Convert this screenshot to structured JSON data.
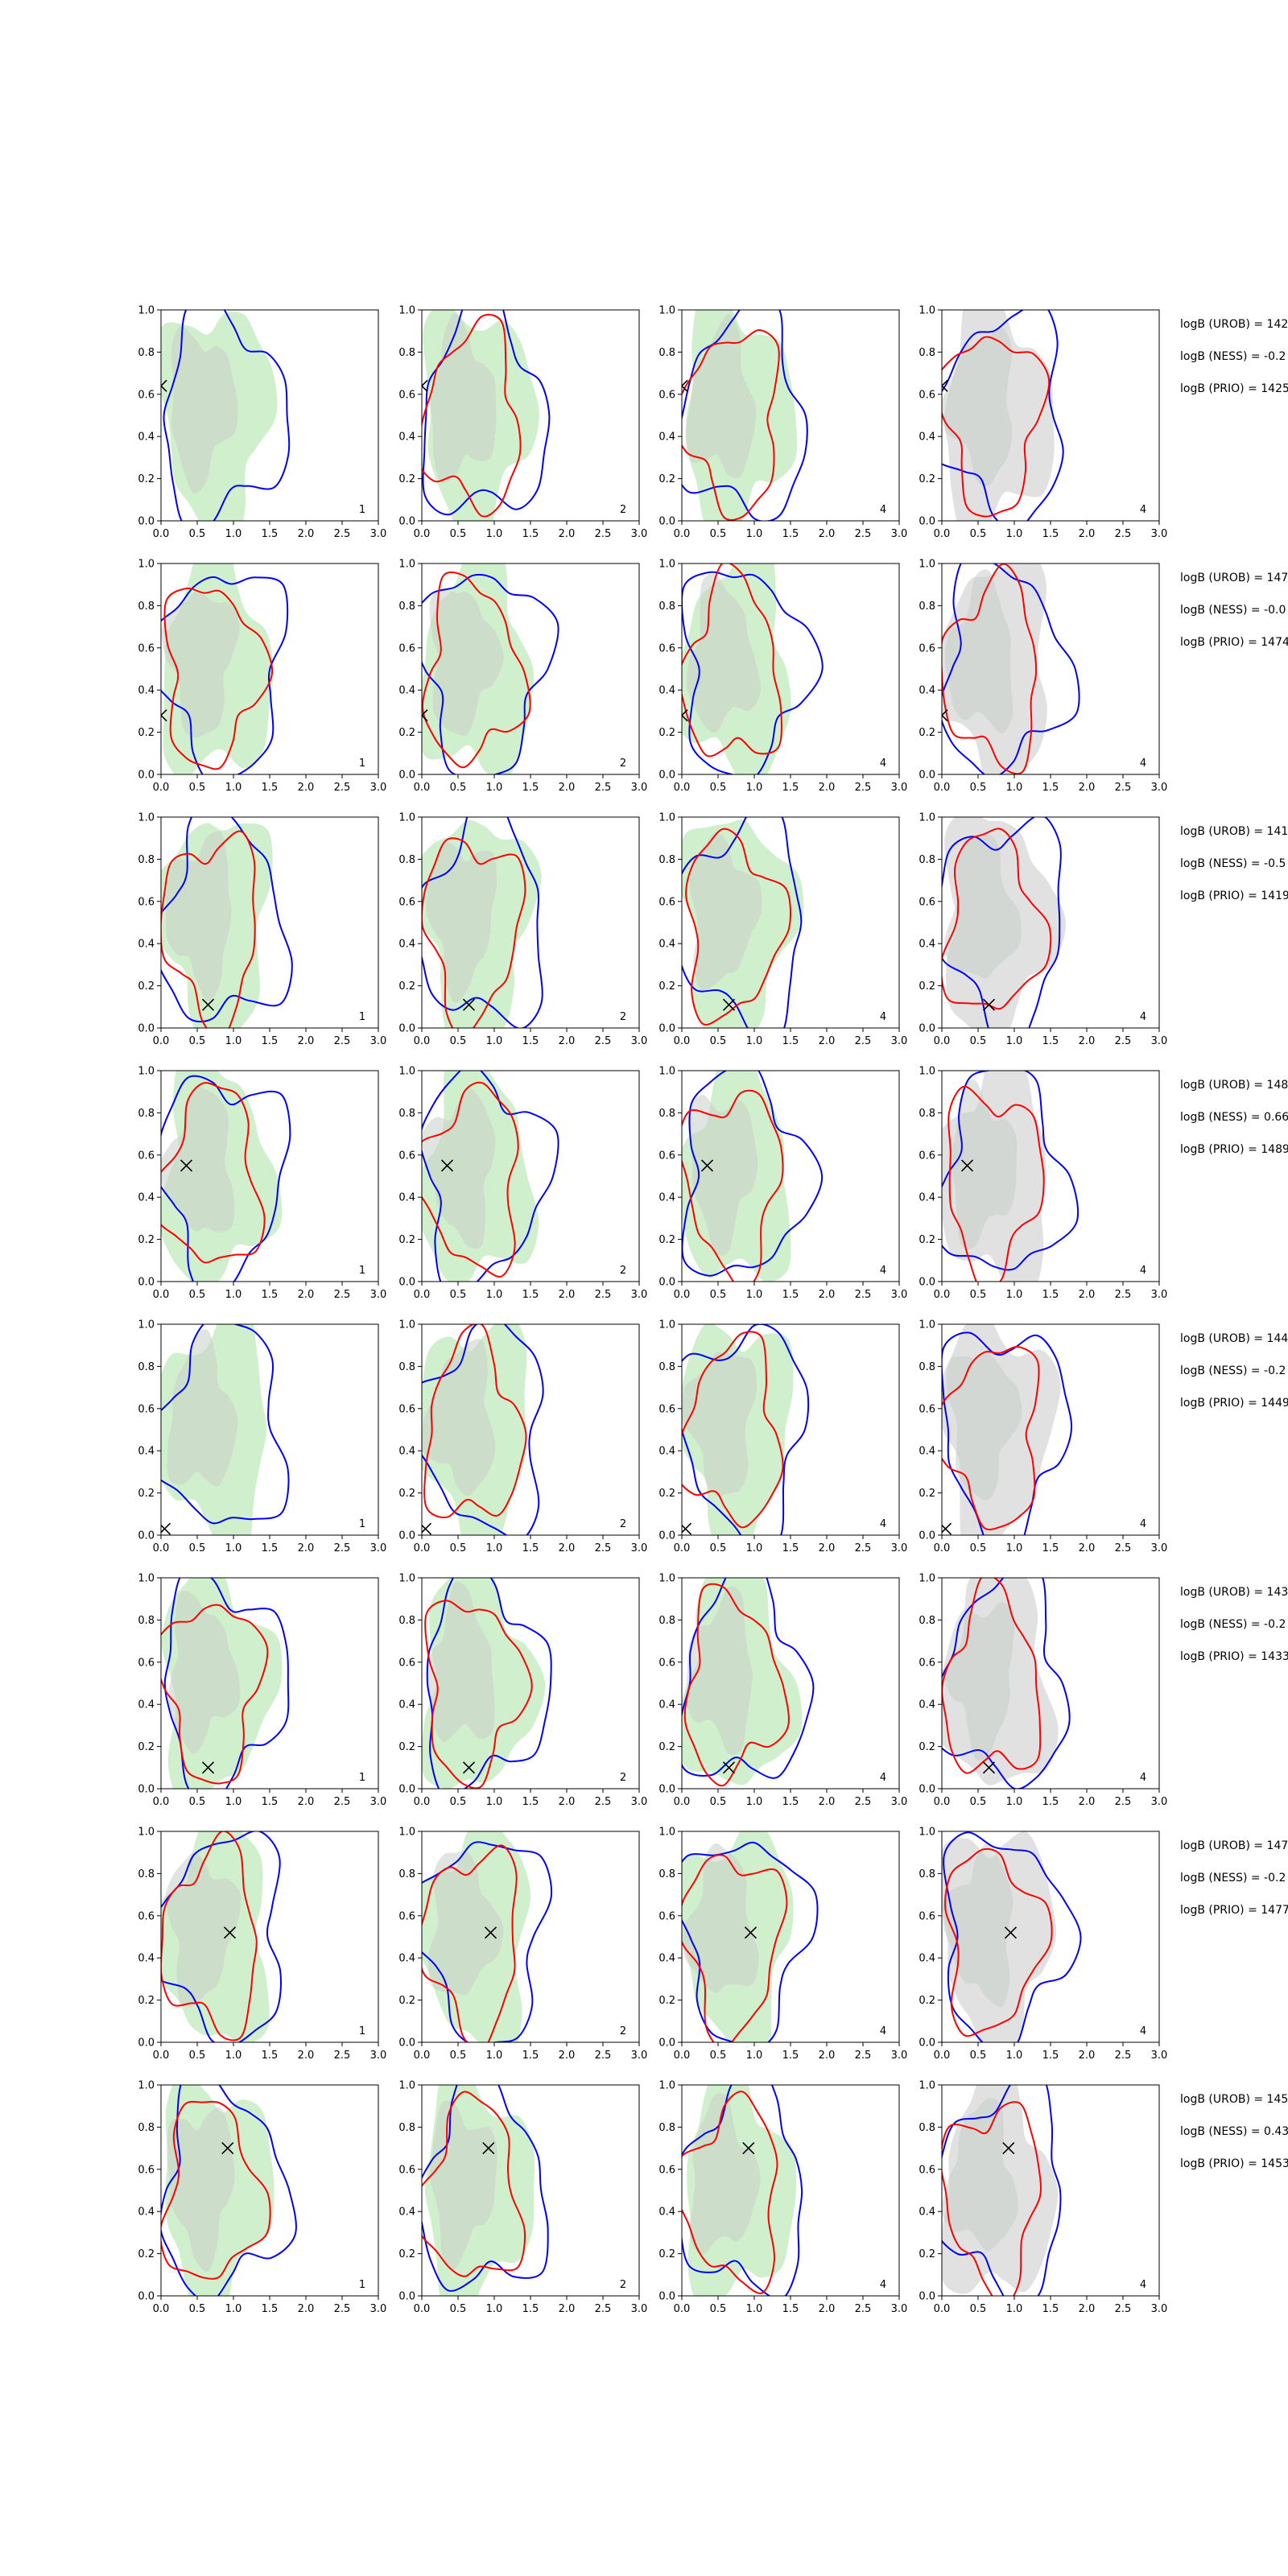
{
  "figure": {
    "xlim": [
      0.0,
      3.0
    ],
    "ylim": [
      0.0,
      1.0
    ],
    "xticks": [
      "0.0",
      "0.5",
      "1.0",
      "1.5",
      "2.0",
      "2.5",
      "3.0"
    ],
    "yticks": [
      "0.0",
      "0.2",
      "0.4",
      "0.6",
      "0.8",
      "1.0"
    ],
    "columns": [
      {
        "corner_label": "1",
        "fill": "green"
      },
      {
        "corner_label": "2",
        "fill": "green"
      },
      {
        "corner_label": "4",
        "fill": "green"
      },
      {
        "corner_label": "4",
        "fill": "grey"
      }
    ],
    "colors": {
      "blue": "#0000ff",
      "red": "#ff0000",
      "green_fill": "#c8ecc3",
      "grey_fill": "#dcdcdc",
      "marker": "#000000"
    },
    "rows": [
      {
        "marker": [
          0.0,
          0.64
        ],
        "annotations": [
          "logB (UROB) = 142",
          "logB (NESS) = -0.2",
          "logB (PRIO) = 1425"
        ]
      },
      {
        "marker": [
          0.0,
          0.28
        ],
        "annotations": [
          "logB (UROB) = 147",
          "logB (NESS) = -0.0",
          "logB (PRIO) = 1474"
        ]
      },
      {
        "marker": [
          0.65,
          0.11
        ],
        "annotations": [
          "logB (UROB) = 141",
          "logB (NESS) = -0.5",
          "logB (PRIO) = 1419"
        ]
      },
      {
        "marker": [
          0.35,
          0.55
        ],
        "annotations": [
          "logB (UROB) = 148",
          "logB (NESS) = 0.66",
          "logB (PRIO) = 1489"
        ]
      },
      {
        "marker": [
          0.05,
          0.03
        ],
        "annotations": [
          "logB (UROB) = 144",
          "logB (NESS) = -0.2",
          "logB (PRIO) = 1449"
        ]
      },
      {
        "marker": [
          0.65,
          0.1
        ],
        "annotations": [
          "logB (UROB) = 143",
          "logB (NESS) = -0.2",
          "logB (PRIO) = 1433"
        ]
      },
      {
        "marker": [
          0.95,
          0.52
        ],
        "annotations": [
          "logB (UROB) = 147",
          "logB (NESS) = -0.2",
          "logB (PRIO) = 1477"
        ]
      },
      {
        "marker": [
          0.92,
          0.7
        ],
        "annotations": [
          "logB (UROB) = 145",
          "logB (NESS) = 0.43",
          "logB (PRIO) = 1453"
        ]
      }
    ]
  },
  "chart_data": {
    "type": "scatter",
    "description_of_series": "8x4 grid of contour panels; blue and red outline contours over shaded fill regions",
    "xlim": [
      0.0,
      3.0
    ],
    "ylim": [
      0.0,
      1.0
    ],
    "panels_per_row": 4,
    "rows": 8,
    "markers": [
      {
        "row": 1,
        "x": 0.0,
        "y": 0.64
      },
      {
        "row": 2,
        "x": 0.0,
        "y": 0.28
      },
      {
        "row": 3,
        "x": 0.65,
        "y": 0.11
      },
      {
        "row": 4,
        "x": 0.35,
        "y": 0.55
      },
      {
        "row": 5,
        "x": 0.05,
        "y": 0.03
      },
      {
        "row": 6,
        "x": 0.65,
        "y": 0.1
      },
      {
        "row": 7,
        "x": 0.95,
        "y": 0.52
      },
      {
        "row": 8,
        "x": 0.92,
        "y": 0.7
      }
    ]
  }
}
